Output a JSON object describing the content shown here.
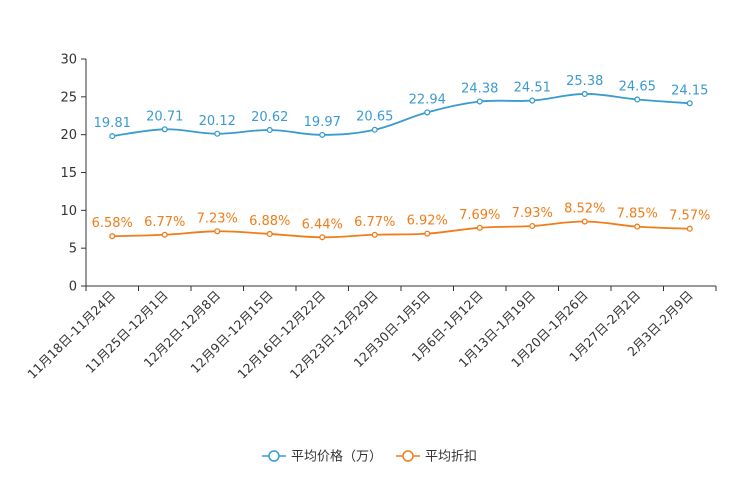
{
  "chart_data": {
    "type": "line",
    "title": "",
    "xlabel": "",
    "ylabel": "",
    "ylim": [
      0,
      30
    ],
    "yticks": [
      0,
      5,
      10,
      15,
      20,
      25,
      30
    ],
    "categories": [
      "11月18日-11月24日",
      "11月25日-12月1日",
      "12月2日-12月8日",
      "12月9日-12月15日",
      "12月16日-12月22日",
      "12月23日-12月29日",
      "12月30日-1月5日",
      "1月6日-1月12日",
      "1月13日-1月19日",
      "1月20日-1月26日",
      "1月27日-2月2日",
      "2月3日-2月9日"
    ],
    "series": [
      {
        "name": "平均价格（万）",
        "color": "#3a9bd0",
        "values": [
          19.81,
          20.71,
          20.12,
          20.62,
          19.97,
          20.65,
          22.94,
          24.38,
          24.51,
          25.38,
          24.65,
          24.15
        ],
        "labels": [
          "19.81",
          "20.71",
          "20.12",
          "20.62",
          "19.97",
          "20.65",
          "22.94",
          "24.38",
          "24.51",
          "25.38",
          "24.65",
          "24.15"
        ]
      },
      {
        "name": "平均折扣",
        "color": "#f07d1a",
        "values": [
          6.58,
          6.77,
          7.23,
          6.88,
          6.44,
          6.77,
          6.92,
          7.69,
          7.93,
          8.52,
          7.85,
          7.57
        ],
        "labels": [
          "6.58%",
          "6.77%",
          "7.23%",
          "6.88%",
          "6.44%",
          "6.77%",
          "6.92%",
          "7.69%",
          "7.93%",
          "8.52%",
          "7.85%",
          "7.57%"
        ]
      }
    ],
    "legend_position": "bottom-center",
    "grid": false
  }
}
